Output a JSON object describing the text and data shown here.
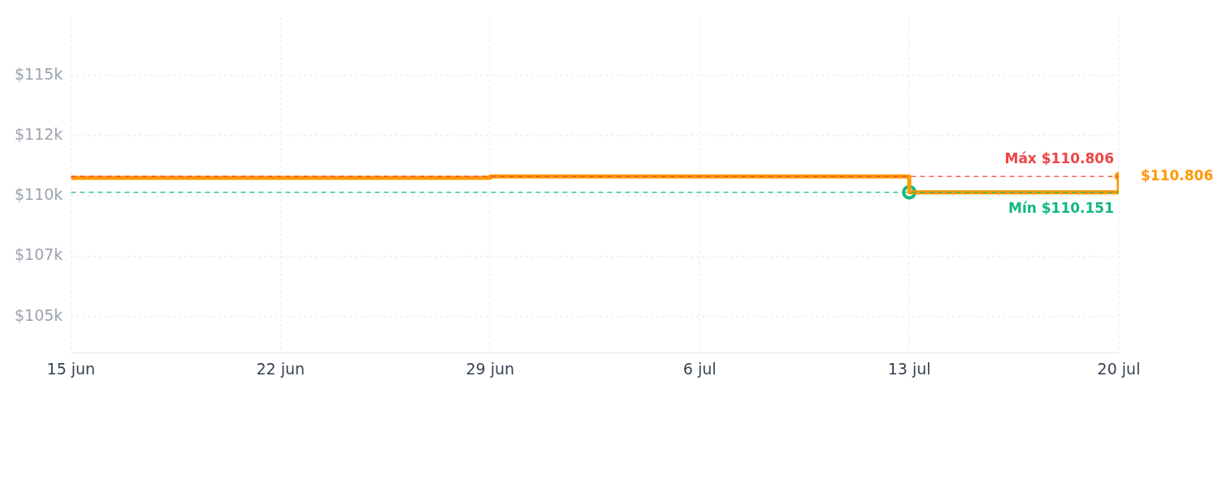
{
  "chart_data": {
    "type": "step",
    "x": [
      "--06-15",
      "--06-29",
      "--07-13",
      "--07-20"
    ],
    "series": [
      {
        "color": "#ff9800",
        "values": [
          110750,
          110806,
          110151,
          110806
        ],
        "marker": "none"
      },
      {
        "type": "scatter",
        "color": "#10b981",
        "x": [
          "--07-13"
        ],
        "values": [
          110151
        ],
        "marker": "circle"
      },
      {
        "type": "scatter",
        "color": "#ff9800",
        "x": [
          "--07-20"
        ],
        "values": [
          110806
        ],
        "marker": "circle",
        "value_labels": [
          "$110.806"
        ]
      }
    ],
    "xlim": [
      "--06-15",
      "--07-20"
    ],
    "xticks": [
      {
        "value": "--06-15",
        "label": "15 jun"
      },
      {
        "value": "--06-22",
        "label": "22 jun"
      },
      {
        "value": "--06-29",
        "label": "29 jun"
      },
      {
        "value": "--07-06",
        "label": "6 jul"
      },
      {
        "value": "--07-13",
        "label": "13 jul"
      },
      {
        "value": "--07-20",
        "label": "20 jul"
      }
    ],
    "ylim": [
      103500,
      117400
    ],
    "yticks": [
      {
        "value": 105000,
        "label": "$105k"
      },
      {
        "value": 107500,
        "label": "$107k"
      },
      {
        "value": 110000,
        "label": "$110k"
      },
      {
        "value": 112500,
        "label": "$112k"
      },
      {
        "value": 115000,
        "label": "$115k"
      }
    ],
    "ref_lines": [
      {
        "axis": "y",
        "value": 110806,
        "label": "Máx $110.806",
        "color": "#ef4444",
        "line_style": "dashed"
      },
      {
        "axis": "y",
        "value": 110151,
        "label": "Mín $110.151",
        "color": "#10b981",
        "line_style": "dashed"
      }
    ],
    "grid": true,
    "legend": false
  }
}
